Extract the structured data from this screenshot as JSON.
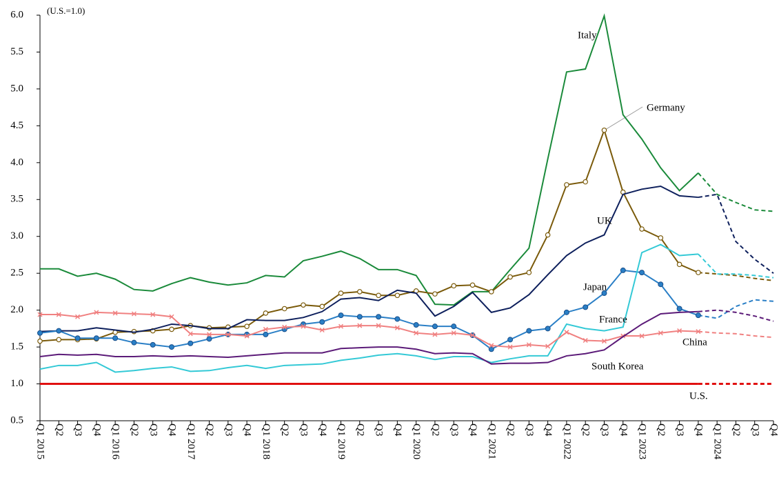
{
  "chart_data": {
    "type": "line",
    "unit_note": "(U.S.=1.0)",
    "categories": [
      "Q1 2015",
      "Q2",
      "Q3",
      "Q4",
      "Q1 2016",
      "Q2",
      "Q3",
      "Q4",
      "Q1 2017",
      "Q2",
      "Q3",
      "Q4",
      "Q1 2018",
      "Q2",
      "Q3",
      "Q4",
      "Q1 2019",
      "Q2",
      "Q3",
      "Q4",
      "Q1 2020",
      "Q2",
      "Q3",
      "Q4",
      "Q1 2021",
      "Q2",
      "Q3",
      "Q4",
      "Q1 2022",
      "Q2",
      "Q3",
      "Q4",
      "Q1 2023",
      "Q2",
      "Q3",
      "Q4",
      "Q1 2024",
      "Q2",
      "Q3",
      "Q4"
    ],
    "ylim": [
      0.5,
      6.0
    ],
    "yticks": [
      0.5,
      {
        "value": 1.0,
        "label": "1.0"
      },
      1.5,
      {
        "value": 2.0,
        "label": "2.0"
      },
      2.5,
      {
        "value": 3.0,
        "label": "3.0"
      },
      3.5,
      {
        "value": 4.0,
        "label": "4.0"
      },
      4.5,
      {
        "value": 5.0,
        "label": "5.0"
      },
      5.5,
      {
        "value": 6.0,
        "label": "6.0"
      }
    ],
    "grid": false,
    "forecast_from": 35,
    "series": [
      {
        "name": "Italy",
        "color": "#1a8a3a",
        "marker": "none",
        "values": [
          2.56,
          2.56,
          2.46,
          2.5,
          2.42,
          2.28,
          2.26,
          2.36,
          2.44,
          2.38,
          2.34,
          2.37,
          2.47,
          2.45,
          2.67,
          2.73,
          2.8,
          2.7,
          2.55,
          2.55,
          2.47,
          2.08,
          2.07,
          2.25,
          2.25,
          2.55,
          2.84,
          4.05,
          5.23,
          5.27,
          5.99,
          4.65,
          4.32,
          3.93,
          3.62,
          3.86,
          3.57,
          3.46,
          3.36,
          3.34
        ]
      },
      {
        "name": "Germany",
        "color": "#7a5a0a",
        "marker": "circle-open",
        "values": [
          1.58,
          1.6,
          1.6,
          1.61,
          1.7,
          1.71,
          1.72,
          1.74,
          1.79,
          1.76,
          1.77,
          1.78,
          1.96,
          2.02,
          2.07,
          2.05,
          2.23,
          2.25,
          2.2,
          2.2,
          2.26,
          2.22,
          2.33,
          2.34,
          2.25,
          2.45,
          2.51,
          3.02,
          3.7,
          3.74,
          4.44,
          3.6,
          3.1,
          2.98,
          2.62,
          2.51,
          2.49,
          2.47,
          2.43,
          2.4
        ]
      },
      {
        "name": "UK",
        "color": "#0d1f5c",
        "marker": "none",
        "values": [
          1.71,
          1.72,
          1.72,
          1.76,
          1.73,
          1.7,
          1.74,
          1.81,
          1.79,
          1.75,
          1.75,
          1.87,
          1.86,
          1.86,
          1.9,
          1.98,
          2.15,
          2.17,
          2.13,
          2.27,
          2.23,
          1.92,
          2.05,
          2.24,
          1.97,
          2.03,
          2.21,
          2.48,
          2.74,
          2.91,
          3.02,
          3.57,
          3.64,
          3.68,
          3.55,
          3.53,
          3.57,
          2.93,
          2.69,
          2.5
        ]
      },
      {
        "name": "Japan",
        "color": "#2a7fc6",
        "marker": "circle",
        "values": [
          1.69,
          1.72,
          1.62,
          1.62,
          1.62,
          1.56,
          1.53,
          1.5,
          1.55,
          1.61,
          1.67,
          1.67,
          1.67,
          1.74,
          1.81,
          1.84,
          1.93,
          1.91,
          1.91,
          1.88,
          1.8,
          1.78,
          1.78,
          1.66,
          1.47,
          1.6,
          1.72,
          1.75,
          1.97,
          2.04,
          2.23,
          2.54,
          2.51,
          2.35,
          2.02,
          1.93,
          1.89,
          2.05,
          2.14,
          2.12
        ]
      },
      {
        "name": "France",
        "color": "#33c9d6",
        "marker": "none",
        "values": [
          1.2,
          1.25,
          1.25,
          1.29,
          1.16,
          1.18,
          1.21,
          1.23,
          1.17,
          1.18,
          1.22,
          1.25,
          1.21,
          1.25,
          1.26,
          1.27,
          1.32,
          1.35,
          1.39,
          1.41,
          1.38,
          1.33,
          1.37,
          1.37,
          1.29,
          1.34,
          1.38,
          1.38,
          1.81,
          1.75,
          1.72,
          1.77,
          2.78,
          2.89,
          2.74,
          2.76,
          2.49,
          2.49,
          2.47,
          2.44
        ]
      },
      {
        "name": "China",
        "color": "#f08080",
        "marker": "x",
        "values": [
          1.94,
          1.94,
          1.91,
          1.97,
          1.96,
          1.95,
          1.94,
          1.91,
          1.68,
          1.67,
          1.67,
          1.65,
          1.74,
          1.77,
          1.78,
          1.73,
          1.78,
          1.79,
          1.79,
          1.76,
          1.69,
          1.67,
          1.69,
          1.66,
          1.52,
          1.5,
          1.53,
          1.51,
          1.7,
          1.59,
          1.58,
          1.65,
          1.65,
          1.69,
          1.72,
          1.71,
          1.69,
          1.68,
          1.65,
          1.63
        ]
      },
      {
        "name": "South Korea",
        "color": "#5b1a78",
        "marker": "none",
        "values": [
          1.37,
          1.4,
          1.39,
          1.4,
          1.37,
          1.37,
          1.38,
          1.37,
          1.38,
          1.37,
          1.36,
          1.38,
          1.4,
          1.42,
          1.42,
          1.42,
          1.48,
          1.49,
          1.5,
          1.5,
          1.47,
          1.41,
          1.42,
          1.41,
          1.27,
          1.28,
          1.28,
          1.29,
          1.38,
          1.41,
          1.46,
          1.64,
          1.81,
          1.95,
          1.97,
          1.98,
          2.0,
          1.97,
          1.92,
          1.85
        ]
      },
      {
        "name": "U.S.",
        "color": "#e01010",
        "marker": "none",
        "values": [
          1,
          1,
          1,
          1,
          1,
          1,
          1,
          1,
          1,
          1,
          1,
          1,
          1,
          1,
          1,
          1,
          1,
          1,
          1,
          1,
          1,
          1,
          1,
          1,
          1,
          1,
          1,
          1,
          1,
          1,
          1,
          1,
          1,
          1,
          1,
          1,
          1,
          1,
          1,
          1
        ]
      }
    ]
  }
}
